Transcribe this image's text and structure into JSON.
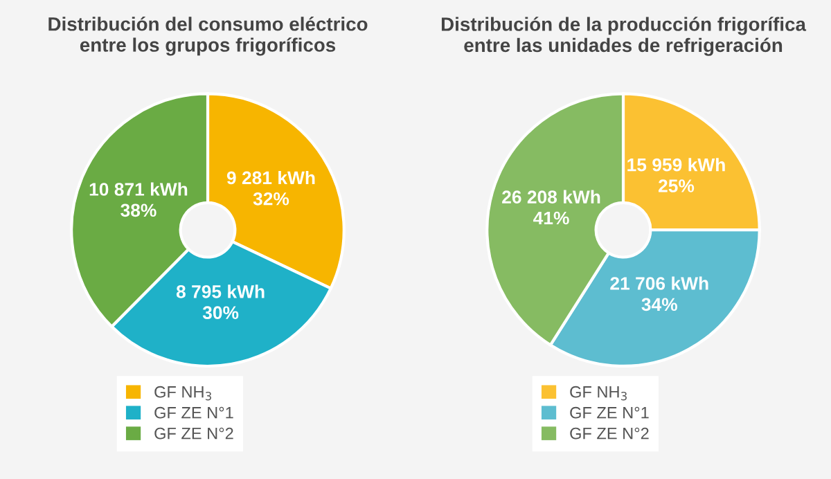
{
  "chart_data": [
    {
      "type": "donut",
      "title": "Distribución del consumo eléctrico\nentre los grupos frigoríficos",
      "categories": [
        "GF NH$_{3}$",
        "GF ZE N°1",
        "GF ZE N°2"
      ],
      "values": [
        9281,
        8795,
        10871
      ],
      "colors": [
        "#f7b500",
        "#1fb1c8",
        "#6aab44"
      ],
      "value_labels": [
        "9 281 kWh\n32%",
        "8 795 kWh\n30%",
        "10 871 kWh\n38%"
      ],
      "legend": "bottom"
    },
    {
      "type": "donut",
      "title": "Distribución de la producción frigorífica\nentre las unidades de refrigeración",
      "categories": [
        "GF NH$_{3}$",
        "GF ZE N°1",
        "GF ZE N°2"
      ],
      "values": [
        15959,
        21706,
        26208
      ],
      "colors": [
        "#fbc132",
        "#5dbdd0",
        "#86bb62"
      ],
      "value_labels": [
        "15 959 kWh\n25%",
        "21 706 kWh\n34%",
        "26 208 kWh\n41%"
      ],
      "legend": "bottom"
    }
  ]
}
